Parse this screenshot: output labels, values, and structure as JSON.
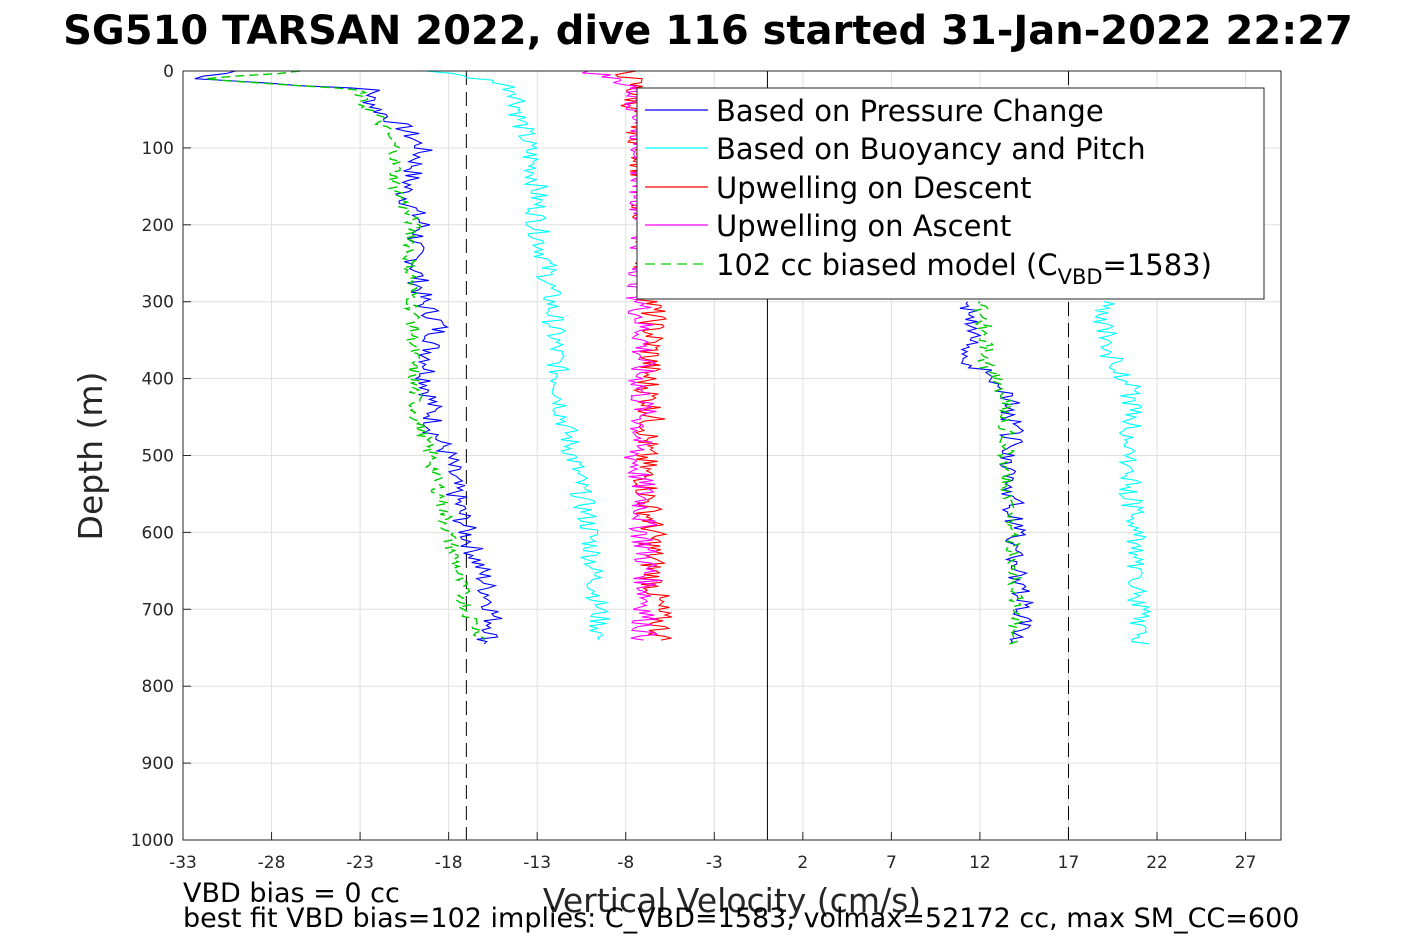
{
  "title": "SG510 TARSAN 2022, dive 116 started 31-Jan-2022 22:27",
  "footer": {
    "line1": "VBD bias = 0 cc",
    "line2": "best fit VBD bias=102 implies: C_VBD=1583, volmax=52172 cc, max SM_CC=600"
  },
  "chart_data": {
    "type": "line",
    "title": "SG510 TARSAN 2022, dive 116 started 31-Jan-2022 22:27",
    "xlabel": "Vertical Velocity (cm/s)",
    "ylabel": "Depth (m)",
    "xlim": [
      -33,
      29
    ],
    "ylim": [
      1000,
      0
    ],
    "y_reversed": true,
    "grid": true,
    "xticks": [
      -33,
      -28,
      -23,
      -18,
      -13,
      -8,
      -3,
      2,
      7,
      12,
      17,
      22,
      27
    ],
    "yticks": [
      0,
      100,
      200,
      300,
      400,
      500,
      600,
      700,
      800,
      900,
      1000
    ],
    "legend_position": "top-right",
    "reference_lines": {
      "zero": 0,
      "dashed": [
        -17,
        17
      ],
      "color": "#000000"
    },
    "series": [
      {
        "name": "Based on Pressure Change",
        "color": "#0000ff",
        "style": "solid",
        "descent": {
          "depth": [
            0,
            10,
            25,
            35,
            50,
            75,
            100,
            130,
            160,
            200,
            230,
            260,
            300,
            330,
            360,
            400,
            430,
            470,
            500,
            530,
            560,
            600,
            630,
            660,
            700,
            730,
            745
          ],
          "velocity": [
            -30,
            -32,
            -22,
            -22.5,
            -22,
            -20.5,
            -19.5,
            -20,
            -20.5,
            -19.5,
            -20,
            -19.8,
            -19.5,
            -18.5,
            -19,
            -19.2,
            -19,
            -18.8,
            -18,
            -17.8,
            -17.5,
            -17,
            -16.5,
            -16,
            -15.5,
            -15.5,
            -16
          ]
        },
        "ascent": {
          "depth": [
            745,
            700,
            650,
            600,
            550,
            500,
            450,
            410,
            380,
            350,
            320,
            300
          ],
          "velocity": [
            14,
            14.5,
            14,
            14,
            13.8,
            13.8,
            13.8,
            13.5,
            11.5,
            11.5,
            11.5,
            11.3
          ]
        }
      },
      {
        "name": "Based on Buoyancy and Pitch",
        "color": "#00ffff",
        "style": "solid",
        "descent": {
          "depth": [
            0,
            15,
            30,
            60,
            100,
            150,
            200,
            250,
            300,
            350,
            400,
            450,
            500,
            550,
            600,
            650,
            700,
            740
          ],
          "velocity": [
            -19,
            -15,
            -14,
            -14,
            -13.5,
            -13,
            -13,
            -12.5,
            -12.2,
            -12,
            -11.8,
            -11.5,
            -11,
            -10.5,
            -10,
            -9.8,
            -9.5,
            -9.5
          ]
        },
        "ascent": {
          "depth": [
            745,
            700,
            650,
            600,
            550,
            500,
            450,
            410,
            380,
            350,
            320,
            300
          ],
          "velocity": [
            21,
            21,
            20.8,
            20.8,
            20.5,
            20.5,
            20.5,
            20.5,
            19.5,
            19.2,
            19,
            19
          ]
        }
      },
      {
        "name": "Upwelling on Descent",
        "color": "#ff0000",
        "style": "solid",
        "depth": [
          0,
          20,
          50,
          100,
          150,
          200,
          250,
          300,
          350,
          400,
          450,
          500,
          550,
          600,
          650,
          700,
          740
        ],
        "velocity": [
          -8,
          -7.5,
          -7.5,
          -7,
          -7,
          -6.8,
          -6.8,
          -6.5,
          -6.5,
          -6.8,
          -6.5,
          -7,
          -6.8,
          -6.5,
          -6.5,
          -6.2,
          -6
        ]
      },
      {
        "name": "Upwelling on Ascent",
        "color": "#ff00ff",
        "style": "solid",
        "depth": [
          0,
          20,
          50,
          100,
          150,
          200,
          250,
          300,
          350,
          400,
          450,
          500,
          550,
          600,
          650,
          700,
          740
        ],
        "velocity": [
          -10,
          -7.5,
          -7.2,
          -7,
          -7,
          -7,
          -7,
          -7.2,
          -7,
          -7.2,
          -7,
          -7.5,
          -7,
          -7,
          -6.8,
          -6.8,
          -7
        ]
      },
      {
        "name": "102 cc biased model (C_VBD=1583)",
        "color": "#00cc00",
        "style": "dashed",
        "descent": {
          "depth": [
            0,
            10,
            25,
            40,
            60,
            100,
            150,
            200,
            250,
            300,
            350,
            400,
            450,
            500,
            550,
            600,
            650,
            700,
            740
          ],
          "velocity": [
            -26,
            -32,
            -23,
            -23,
            -22,
            -21,
            -21,
            -20,
            -20.2,
            -20,
            -20,
            -20,
            -19.8,
            -19,
            -18.5,
            -18,
            -17.5,
            -17,
            -16
          ]
        },
        "ascent": {
          "depth": [
            745,
            700,
            650,
            600,
            550,
            500,
            450,
            410,
            380,
            350,
            320,
            300
          ],
          "velocity": [
            14,
            14,
            14,
            13.8,
            13.5,
            13.5,
            13.5,
            13.3,
            12.3,
            12.3,
            12.2,
            12
          ]
        }
      }
    ]
  },
  "legend": {
    "labels": [
      "Based on Pressure Change",
      "Based on Buoyancy and Pitch",
      "Upwelling on Descent",
      "Upwelling on Ascent"
    ],
    "model_prefix": "102 cc biased model (C",
    "model_sub": "VBD",
    "model_suffix": "=1583)"
  }
}
